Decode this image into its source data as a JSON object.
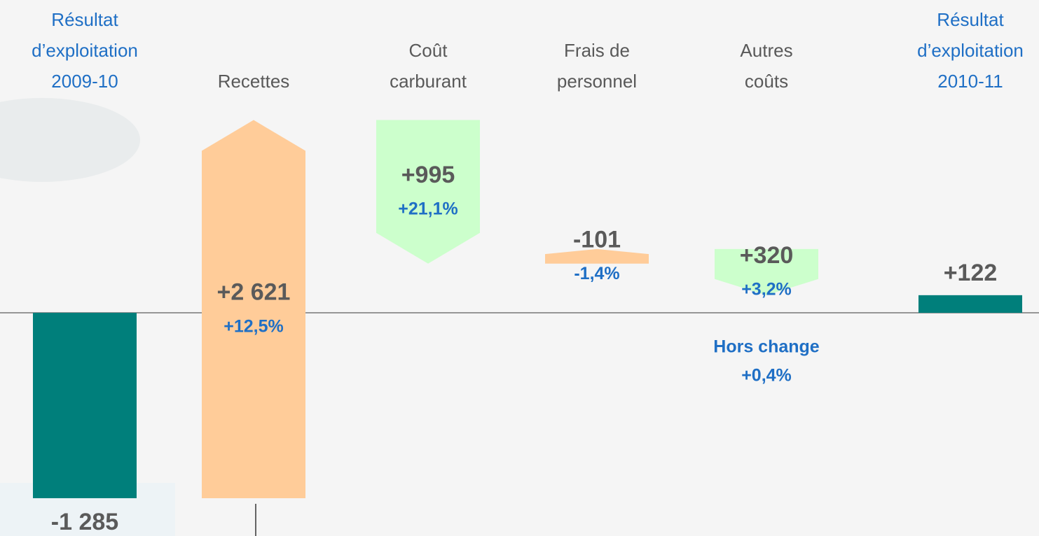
{
  "chart_data": {
    "type": "waterfall",
    "categories": [
      [
        "Résultat",
        "d’exploitation",
        "2009-10"
      ],
      [
        "Recettes"
      ],
      [
        "Coût",
        "carburant"
      ],
      [
        "Frais de",
        "personnel"
      ],
      [
        "Autres",
        "coûts"
      ],
      [
        "Résultat",
        "d’exploitation",
        "2010-11"
      ]
    ],
    "values": [
      -1285,
      2621,
      995,
      -101,
      320,
      122
    ],
    "value_labels": [
      "-1 285",
      "+2 621",
      "+995",
      "-101",
      "+320",
      "+122"
    ],
    "totals": [
      true,
      false,
      false,
      false,
      false,
      true
    ],
    "inverted": [
      false,
      false,
      true,
      true,
      true,
      false
    ],
    "colors": [
      "#007f7b",
      "#ffcc99",
      "#ccffcc",
      "#ffcc99",
      "#ccffcc",
      "#007f7b"
    ],
    "category_colors": [
      "#1f6fc5",
      "#595959",
      "#595959",
      "#595959",
      "#595959",
      "#1f6fc5"
    ],
    "percent_values": [
      null,
      12.5,
      21.1,
      -1.4,
      3.2,
      null
    ],
    "percent_labels": [
      null,
      "+12,5%",
      "+21,1%",
      "-1,4%",
      "+3,2%",
      null
    ],
    "annotation": {
      "text": "Hors change",
      "value": 0.4,
      "label": "+0,4%"
    },
    "ylim": [
      -1547,
      1683
    ]
  }
}
